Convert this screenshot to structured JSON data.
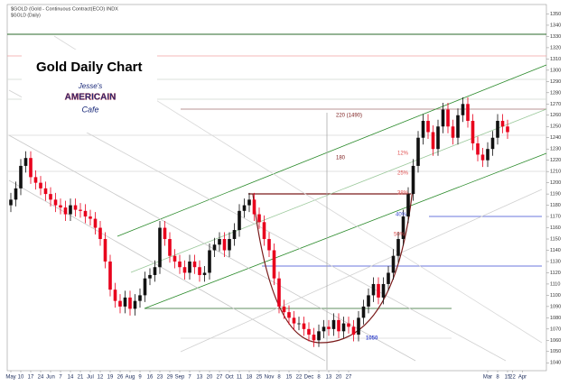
{
  "chart_data": {
    "type": "candlestick",
    "header": "$GOLD (Gold - Continuous Contract(ECO) INDX",
    "subheader": "$GOLD (Daily)",
    "title": "Gold Daily Chart",
    "logo": [
      "Jesse's",
      "AMERICAIN",
      "Cafe"
    ],
    "annotations": [
      "220 (1490)",
      "180",
      "12%",
      "25%",
      "38%",
      "40%",
      "50%",
      "1050"
    ],
    "up_color": "#111111",
    "down_color": "#e8001c",
    "ylim": [
      1033,
      1356
    ],
    "yticks": [
      1040,
      1050,
      1060,
      1070,
      1080,
      1090,
      1100,
      1110,
      1120,
      1130,
      1140,
      1150,
      1160,
      1170,
      1180,
      1190,
      1200,
      1210,
      1220,
      1230,
      1240,
      1250,
      1260,
      1270,
      1280,
      1290,
      1300,
      1310,
      1320,
      1330,
      1340,
      1350
    ],
    "categories": [
      "May",
      null,
      "10",
      null,
      "17",
      null,
      "24",
      null,
      "Jun",
      null,
      "7",
      null,
      "14",
      null,
      "21",
      null,
      "Jul",
      null,
      "12",
      null,
      "19",
      null,
      "26",
      null,
      "Aug",
      null,
      "9",
      null,
      "16",
      null,
      "23",
      null,
      "29",
      null,
      "Sep",
      null,
      "7",
      null,
      "13",
      null,
      "20",
      null,
      "27",
      null,
      "Oct",
      null,
      "11",
      null,
      "18",
      null,
      "25",
      null,
      "Nov",
      null,
      "8",
      null,
      "15",
      null,
      "22",
      null,
      "Dec",
      null,
      "8",
      null,
      "13",
      null,
      "20",
      null,
      "27",
      null,
      null,
      null,
      null,
      null,
      null,
      null,
      null,
      null,
      null,
      null,
      null,
      null,
      null,
      null,
      null,
      null,
      null,
      null,
      null,
      null,
      null,
      null,
      null,
      null,
      null,
      null,
      "Mar",
      null,
      "8",
      null,
      "15",
      "22",
      null,
      "Apr"
    ],
    "open": [
      1180,
      1185,
      1195,
      1215,
      1222,
      1205,
      1200,
      1195,
      1190,
      1185,
      1180,
      1178,
      1172,
      1180,
      1176,
      1175,
      1170,
      1168,
      1160,
      1150,
      1130,
      1105,
      1095,
      1090,
      1098,
      1088,
      1095,
      1100,
      1115,
      1118,
      1125,
      1160,
      1150,
      1135,
      1130,
      1125,
      1120,
      1130,
      1125,
      1118,
      1120,
      1140,
      1145,
      1150,
      1140,
      1150,
      1158,
      1175,
      1180,
      1185,
      1172,
      1165,
      1150,
      1140,
      1115,
      1090,
      1085,
      1080,
      1075,
      1075,
      1070,
      1065,
      1060,
      1068,
      1072,
      1070,
      1078,
      1068,
      1075,
      1072,
      1065,
      1080,
      1090,
      1100,
      1110,
      1098,
      1110,
      1120,
      1135,
      1150,
      1170,
      1190,
      1215,
      1240,
      1255,
      1245,
      1230,
      1250,
      1265,
      1250,
      1240,
      1260,
      1270,
      1255,
      1235,
      1225,
      1220,
      1230,
      1240,
      1255,
      1250,
      null,
      null,
      null
    ],
    "high": [
      1191,
      1201,
      1221,
      1228,
      1228,
      1211,
      1206,
      1201,
      1196,
      1191,
      1186,
      1184,
      1186,
      1186,
      1182,
      1181,
      1176,
      1174,
      1166,
      1156,
      1136,
      1111,
      1101,
      1104,
      1104,
      1101,
      1106,
      1121,
      1124,
      1131,
      1166,
      1166,
      1156,
      1141,
      1136,
      1131,
      1136,
      1136,
      1131,
      1126,
      1146,
      1151,
      1156,
      1156,
      1156,
      1164,
      1181,
      1186,
      1191,
      1191,
      1178,
      1171,
      1156,
      1146,
      1121,
      1096,
      1091,
      1086,
      1081,
      1081,
      1076,
      1071,
      1074,
      1078,
      1078,
      1084,
      1084,
      1081,
      1081,
      1078,
      1086,
      1096,
      1106,
      1116,
      1116,
      1116,
      1126,
      1141,
      1156,
      1176,
      1196,
      1221,
      1246,
      1261,
      1261,
      1251,
      1256,
      1271,
      1271,
      1256,
      1266,
      1276,
      1276,
      1261,
      1241,
      1231,
      1236,
      1246,
      1261,
      1261,
      1256,
      null,
      null,
      null
    ],
    "low": [
      1174,
      1179,
      1189,
      1209,
      1199,
      1194,
      1189,
      1184,
      1179,
      1174,
      1172,
      1166,
      1166,
      1170,
      1169,
      1164,
      1162,
      1154,
      1144,
      1124,
      1099,
      1089,
      1084,
      1084,
      1082,
      1082,
      1089,
      1094,
      1109,
      1112,
      1119,
      1144,
      1129,
      1124,
      1119,
      1114,
      1114,
      1119,
      1112,
      1112,
      1114,
      1134,
      1139,
      1134,
      1134,
      1144,
      1152,
      1169,
      1174,
      1166,
      1159,
      1144,
      1134,
      1109,
      1084,
      1079,
      1074,
      1069,
      1069,
      1064,
      1059,
      1054,
      1054,
      1062,
      1064,
      1064,
      1062,
      1062,
      1066,
      1059,
      1059,
      1074,
      1084,
      1094,
      1092,
      1092,
      1104,
      1114,
      1129,
      1144,
      1164,
      1184,
      1209,
      1234,
      1239,
      1224,
      1224,
      1244,
      1244,
      1234,
      1234,
      1254,
      1249,
      1229,
      1219,
      1214,
      1214,
      1224,
      1234,
      1244,
      1239,
      null,
      null,
      null
    ],
    "close": [
      1185,
      1195,
      1215,
      1222,
      1205,
      1200,
      1195,
      1190,
      1185,
      1180,
      1178,
      1172,
      1180,
      1176,
      1175,
      1170,
      1168,
      1160,
      1150,
      1130,
      1105,
      1095,
      1090,
      1098,
      1088,
      1095,
      1100,
      1115,
      1118,
      1125,
      1160,
      1150,
      1135,
      1130,
      1125,
      1120,
      1130,
      1125,
      1118,
      1120,
      1140,
      1145,
      1150,
      1140,
      1150,
      1158,
      1175,
      1180,
      1185,
      1172,
      1165,
      1150,
      1140,
      1115,
      1090,
      1085,
      1080,
      1075,
      1075,
      1070,
      1065,
      1060,
      1068,
      1072,
      1070,
      1078,
      1068,
      1075,
      1072,
      1065,
      1080,
      1090,
      1100,
      1110,
      1098,
      1110,
      1120,
      1135,
      1150,
      1170,
      1190,
      1215,
      1240,
      1255,
      1245,
      1230,
      1250,
      1265,
      1250,
      1240,
      1260,
      1270,
      1255,
      1235,
      1225,
      1220,
      1230,
      1240,
      1255,
      1250,
      1245,
      null,
      null,
      null
    ]
  }
}
